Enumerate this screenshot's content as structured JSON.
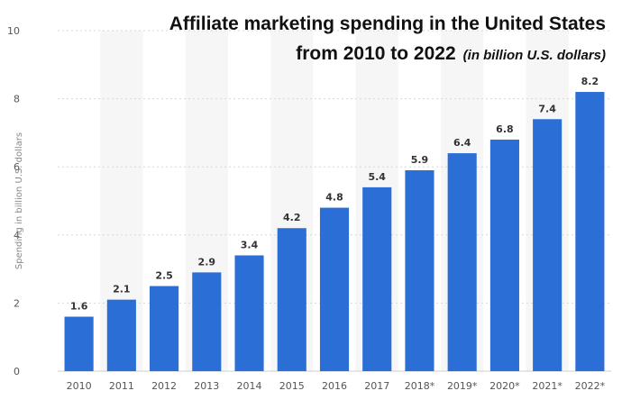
{
  "chart_data": {
    "type": "bar",
    "title_line1": "Affiliate marketing spending in the United States",
    "title_line2_main": "from 2010 to 2022",
    "title_line2_note": "(in billion U.S. dollars)",
    "xlabel": "",
    "ylabel": "Spending in billion U.S. dollars",
    "ylim": [
      0,
      10
    ],
    "yticks": [
      0,
      2,
      4,
      6,
      8,
      10
    ],
    "categories": [
      "2010",
      "2011",
      "2012",
      "2013",
      "2014",
      "2015",
      "2016",
      "2017",
      "2018*",
      "2019*",
      "2020*",
      "2021*",
      "2022*"
    ],
    "values": [
      1.6,
      2.1,
      2.5,
      2.9,
      3.4,
      4.2,
      4.8,
      5.4,
      5.9,
      6.4,
      6.8,
      7.4,
      8.2
    ],
    "bar_color": "#2b6fd6",
    "grid": true,
    "legend": "none"
  }
}
